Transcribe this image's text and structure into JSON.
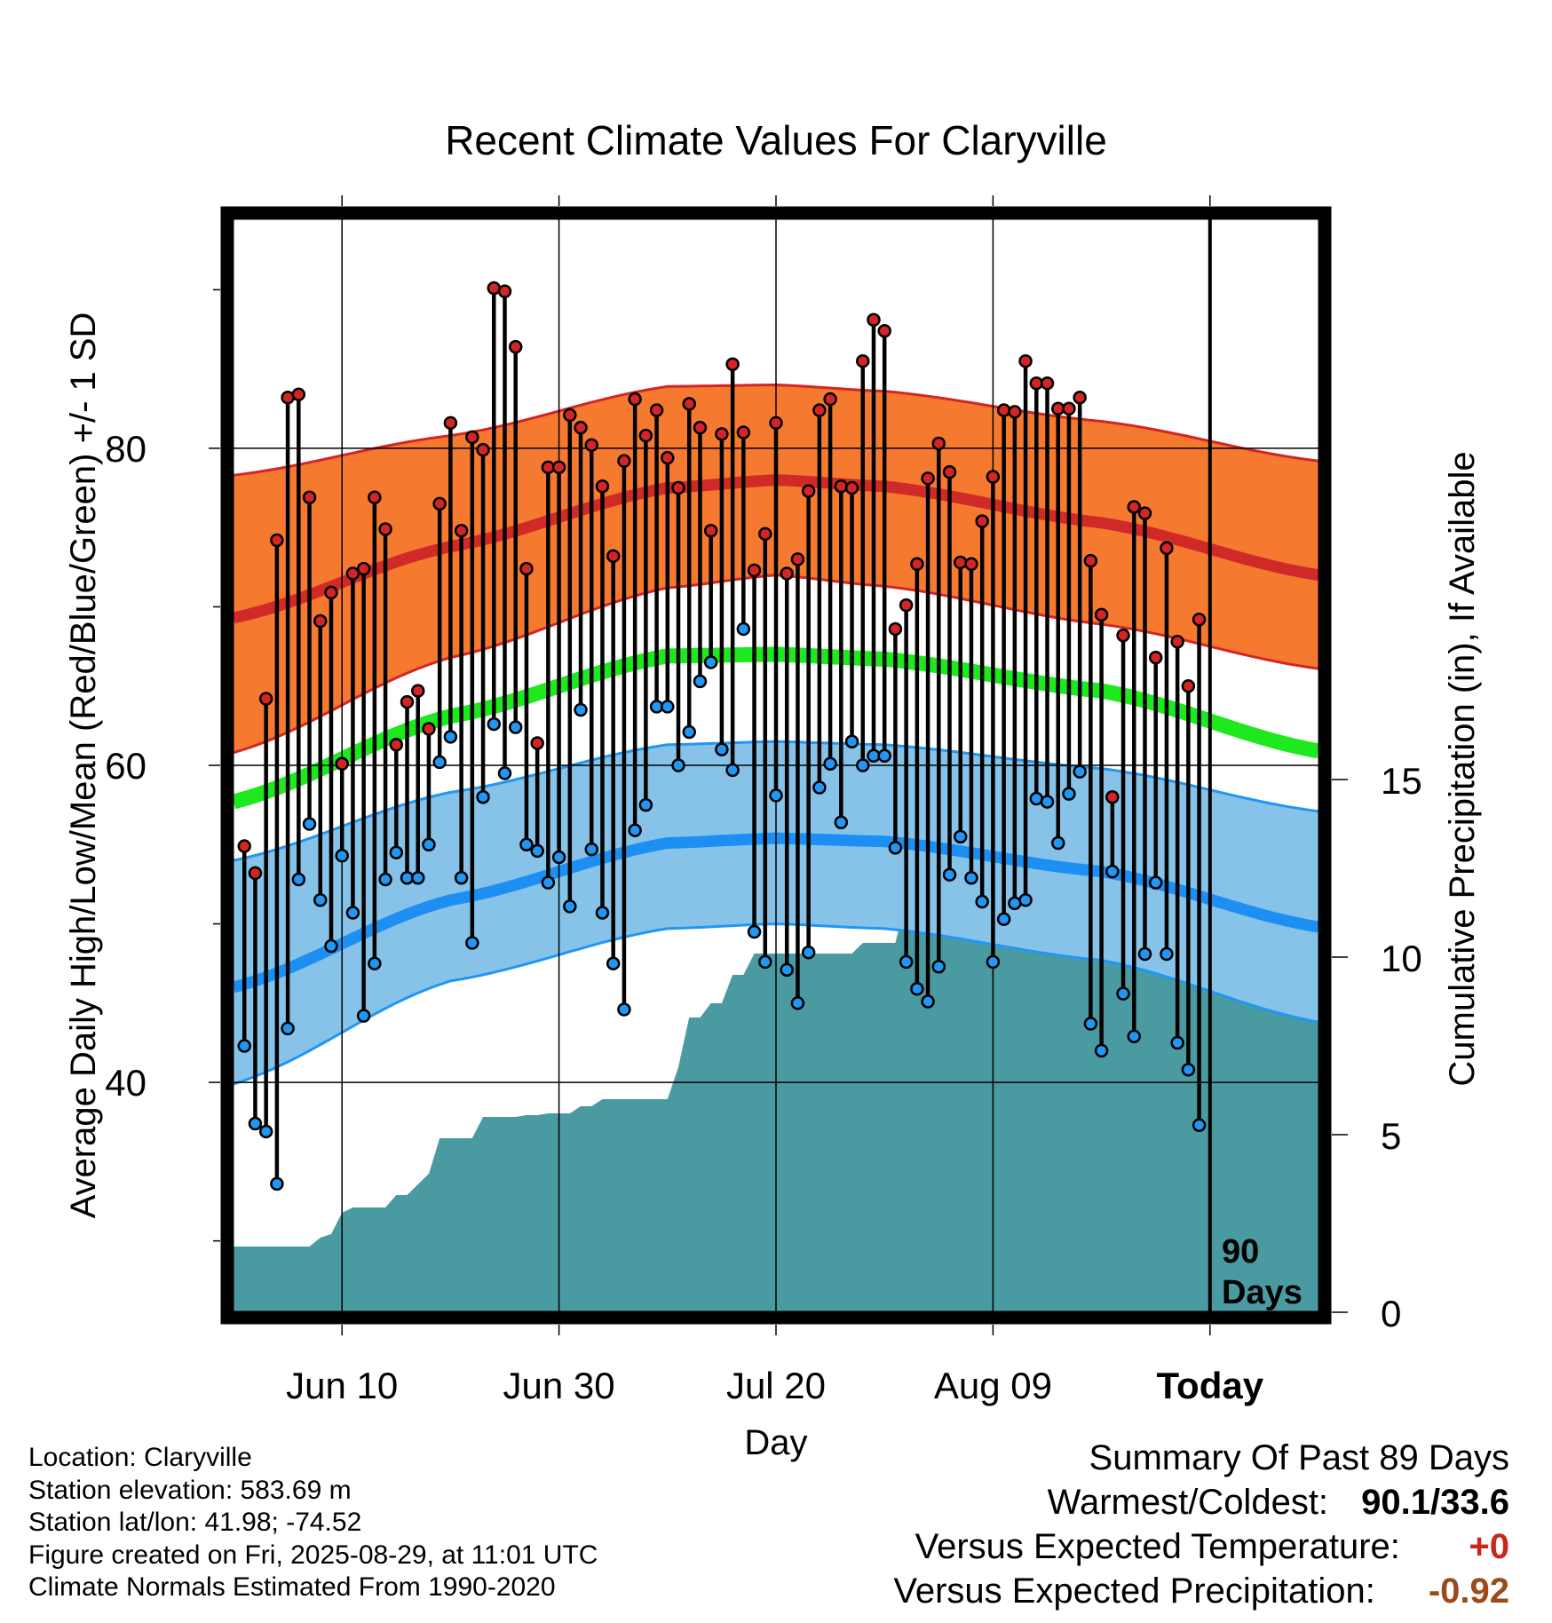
{
  "chart_data": {
    "type": "line",
    "title": "Recent Climate Values For Claryville",
    "xlabel": "Day",
    "ylabel": "Average Daily High/Low/Mean (Red/Blue/Green) +/- 1 SD",
    "y2label": "Cumulative Precipitation (in), If Available",
    "x_tick_labels": [
      "Jun 10",
      "Jun 30",
      "Jul 20",
      "Aug 09",
      "Today"
    ],
    "x_tick_days": [
      10,
      30,
      50,
      70,
      90
    ],
    "xlim": [
      0,
      100
    ],
    "ylim": [
      25.5,
      94.5
    ],
    "y_ticks": [
      40,
      60,
      80
    ],
    "y_minor_ticks": [
      30,
      50,
      70,
      90
    ],
    "y2lim": [
      0,
      30.8
    ],
    "y2_ticks": [
      0,
      5,
      10,
      15
    ],
    "grid": true,
    "today_marker_label": "90 Days",
    "today_day": 90,
    "normals": {
      "day": [
        0,
        20,
        40,
        50,
        60,
        80,
        100
      ],
      "high_mean": [
        69.3,
        73.8,
        77.5,
        78.0,
        77.6,
        75.3,
        72.0
      ],
      "high_upper": [
        78.3,
        80.8,
        83.9,
        84.0,
        83.6,
        81.7,
        79.2
      ],
      "high_lower": [
        60.8,
        66.8,
        71.2,
        72.0,
        71.3,
        68.9,
        66.1
      ],
      "mean_mean": [
        57.7,
        63.1,
        66.9,
        67.0,
        66.7,
        64.7,
        60.9
      ],
      "low_mean": [
        46.0,
        51.5,
        55.1,
        55.4,
        55.2,
        53.3,
        49.8
      ],
      "low_upper": [
        54.0,
        58.3,
        61.3,
        61.5,
        61.3,
        59.8,
        57.1
      ],
      "low_lower": [
        39.9,
        46.4,
        49.7,
        50.0,
        49.7,
        47.7,
        43.8
      ]
    },
    "series": [
      {
        "name": "Daily High",
        "color": "#d42525",
        "x": [
          1,
          2,
          3,
          4,
          5,
          6,
          7,
          8,
          9,
          10,
          11,
          12,
          13,
          14,
          15,
          16,
          17,
          18,
          19,
          20,
          21,
          22,
          23,
          24,
          25,
          26,
          27,
          28,
          29,
          30,
          31,
          32,
          33,
          34,
          35,
          36,
          37,
          38,
          39,
          40,
          41,
          42,
          43,
          44,
          45,
          46,
          47,
          48,
          49,
          50,
          51,
          52,
          53,
          54,
          55,
          56,
          57,
          58,
          59,
          60,
          61,
          62,
          63,
          64,
          65,
          66,
          67,
          68,
          69,
          70,
          71,
          72,
          73,
          74,
          75,
          76,
          77,
          78,
          79,
          80,
          81,
          82,
          83,
          84,
          85,
          86,
          87,
          88,
          89
        ],
        "y": [
          54.9,
          53.2,
          64.2,
          74.2,
          83.2,
          83.4,
          76.9,
          69.1,
          70.9,
          60.1,
          72.1,
          72.4,
          76.9,
          74.9,
          61.3,
          64.0,
          64.7,
          62.3,
          76.5,
          81.6,
          74.8,
          80.7,
          79.9,
          90.1,
          89.9,
          86.4,
          72.4,
          61.4,
          78.8,
          78.8,
          82.1,
          81.3,
          80.2,
          77.6,
          73.2,
          79.2,
          83.1,
          80.8,
          82.4,
          79.4,
          77.5,
          82.8,
          81.3,
          74.8,
          80.9,
          85.3,
          81.0,
          72.3,
          74.6,
          81.6,
          72.1,
          73.0,
          77.3,
          82.4,
          83.1,
          77.6,
          77.5,
          85.5,
          88.1,
          87.4,
          68.6,
          70.1,
          72.7,
          78.1,
          80.3,
          78.5,
          72.8,
          72.7,
          75.4,
          78.2,
          82.4,
          82.3,
          85.5,
          84.1,
          84.1,
          82.5,
          82.5,
          83.2,
          72.9,
          69.5,
          58.0,
          68.2,
          76.3,
          75.9,
          66.8,
          73.7,
          67.8,
          65.0,
          69.2
        ]
      },
      {
        "name": "Daily Low",
        "color": "#2196f3",
        "x": [
          1,
          2,
          3,
          4,
          5,
          6,
          7,
          8,
          9,
          10,
          11,
          12,
          13,
          14,
          15,
          16,
          17,
          18,
          19,
          20,
          21,
          22,
          23,
          24,
          25,
          26,
          27,
          28,
          29,
          30,
          31,
          32,
          33,
          34,
          35,
          36,
          37,
          38,
          39,
          40,
          41,
          42,
          43,
          44,
          45,
          46,
          47,
          48,
          49,
          50,
          51,
          52,
          53,
          54,
          55,
          56,
          57,
          58,
          59,
          60,
          61,
          62,
          63,
          64,
          65,
          66,
          67,
          68,
          69,
          70,
          71,
          72,
          73,
          74,
          75,
          76,
          77,
          78,
          79,
          80,
          81,
          82,
          83,
          84,
          85,
          86,
          87,
          88,
          89
        ],
        "y": [
          42.3,
          37.4,
          36.9,
          33.6,
          43.4,
          52.8,
          56.3,
          51.5,
          48.6,
          54.3,
          50.7,
          44.2,
          47.5,
          52.8,
          54.5,
          52.9,
          52.9,
          55.0,
          60.2,
          61.8,
          52.9,
          48.8,
          58.0,
          62.6,
          59.5,
          62.4,
          55.0,
          54.6,
          52.6,
          54.2,
          51.1,
          63.5,
          54.7,
          50.7,
          47.5,
          44.6,
          55.9,
          57.5,
          63.7,
          63.7,
          60.0,
          62.1,
          65.3,
          66.5,
          61.0,
          59.7,
          68.6,
          49.5,
          47.6,
          58.1,
          47.1,
          45.0,
          48.2,
          58.6,
          60.1,
          56.4,
          61.5,
          60.0,
          60.6,
          60.6,
          54.8,
          47.6,
          45.9,
          45.1,
          47.3,
          53.1,
          55.5,
          52.9,
          51.4,
          47.6,
          50.3,
          51.3,
          51.5,
          57.9,
          57.7,
          55.1,
          58.2,
          59.6,
          43.7,
          42.0,
          53.3,
          45.6,
          42.9,
          48.1,
          52.6,
          48.1,
          42.5,
          40.8,
          37.3
        ]
      },
      {
        "name": "Cumulative Precipitation",
        "color": "#4a9aa2",
        "x": [
          0,
          1,
          2,
          3,
          4,
          5,
          6,
          7,
          8,
          9,
          10,
          11,
          12,
          13,
          14,
          15,
          16,
          17,
          18,
          19,
          20,
          21,
          22,
          23,
          24,
          25,
          26,
          27,
          28,
          29,
          30,
          31,
          32,
          33,
          34,
          35,
          36,
          37,
          38,
          39,
          40,
          41,
          42,
          43,
          44,
          45,
          46,
          47,
          48,
          49,
          50,
          51,
          52,
          53,
          54,
          55,
          56,
          57,
          58,
          59,
          60,
          61,
          62,
          63,
          64,
          65,
          66,
          67,
          68,
          69,
          70,
          71,
          72,
          73,
          74,
          75,
          76,
          77,
          78,
          79,
          80,
          81,
          82,
          83,
          84,
          85,
          86,
          87,
          88,
          89,
          90,
          91,
          92,
          93,
          94,
          95,
          96,
          97,
          98,
          99,
          100
        ],
        "y": [
          1.85,
          1.85,
          1.85,
          1.85,
          1.85,
          1.85,
          1.85,
          1.85,
          2.1,
          2.2,
          2.8,
          2.95,
          2.95,
          2.95,
          2.95,
          3.3,
          3.3,
          3.6,
          3.9,
          4.9,
          4.9,
          4.9,
          4.9,
          5.5,
          5.5,
          5.5,
          5.5,
          5.55,
          5.55,
          5.6,
          5.6,
          5.6,
          5.8,
          5.8,
          6.0,
          6.0,
          6.0,
          6.0,
          6.0,
          6.0,
          6.0,
          6.9,
          8.3,
          8.3,
          8.7,
          8.7,
          9.5,
          9.5,
          10.1,
          10.1,
          10.1,
          10.1,
          10.1,
          10.1,
          10.1,
          10.1,
          10.1,
          10.1,
          10.4,
          10.4,
          10.4,
          10.4,
          11.6,
          11.6,
          11.6,
          11.65,
          11.65,
          11.65,
          11.65,
          11.65,
          12.3,
          12.3,
          12.3,
          12.3,
          12.3,
          12.35,
          12.35,
          12.4,
          12.4,
          12.45,
          12.45,
          12.5,
          12.5,
          12.6,
          12.6,
          12.65,
          12.85,
          12.85,
          12.85,
          12.85,
          12.85,
          12.85,
          12.85,
          12.85,
          12.85,
          12.85,
          12.85,
          12.85,
          12.85,
          12.85,
          12.85
        ]
      }
    ]
  },
  "info": {
    "location": "Location: Claryville",
    "elevation": "Station elevation: 583.69 m",
    "latlon": "Station lat/lon: 41.98; -74.52",
    "created": "Figure created on Fri, 2025-08-29, at 11:01 UTC",
    "normals": "Climate Normals Estimated From 1990-2020"
  },
  "summary": {
    "title": "Summary Of Past 89 Days",
    "warm_cold_label": "Warmest/Coldest:",
    "warm_cold_value": "90.1/33.6",
    "temp_label": "Versus Expected Temperature:",
    "temp_value": "+0",
    "precip_label": "Versus Expected Precipitation:",
    "precip_value": "-0.92",
    "temp_color": "#c8261e",
    "precip_color": "#9c4a1a"
  }
}
